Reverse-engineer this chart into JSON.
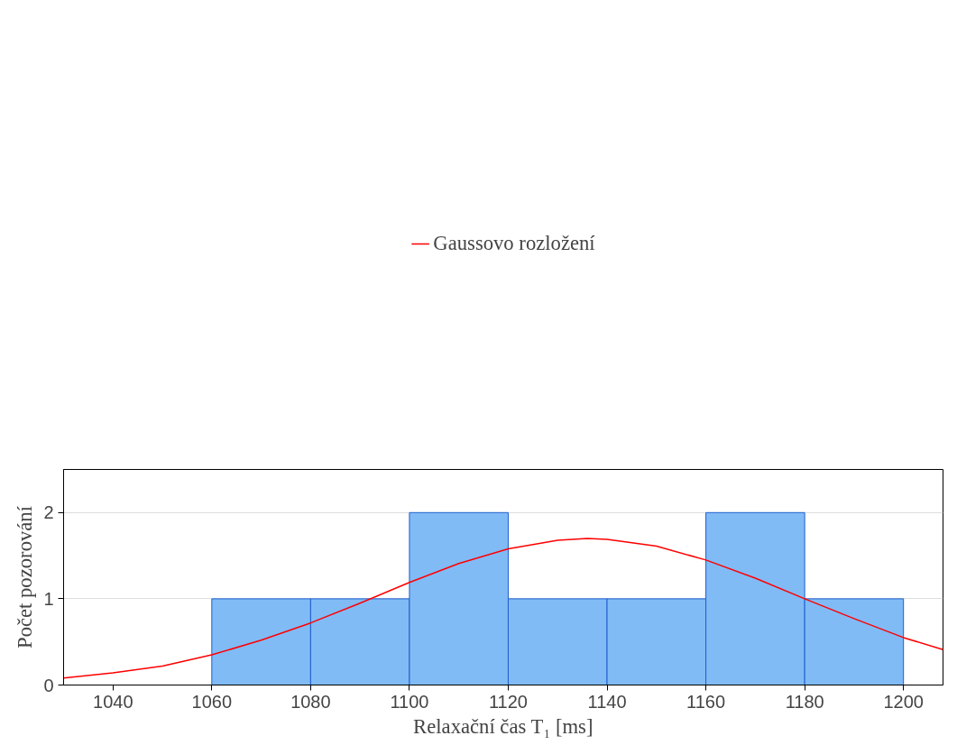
{
  "chart_data": {
    "type": "histogram",
    "xlabel": "Relaxační čas T₁ [ms]",
    "ylabel": "Počet pozorování",
    "bins": [
      1060,
      1080,
      1100,
      1120,
      1140,
      1160,
      1180,
      1200
    ],
    "values": [
      1,
      1,
      2,
      1,
      1,
      2,
      1
    ],
    "color": "#80bbf6",
    "series": [
      {
        "name": "Gaussovo rozložení",
        "type": "line",
        "color": "#ff0000",
        "x": [
          1030,
          1040,
          1050,
          1060,
          1070,
          1080,
          1090,
          1100,
          1110,
          1120,
          1130,
          1136,
          1140,
          1150,
          1160,
          1170,
          1180,
          1190,
          1200,
          1208
        ],
        "values": [
          0.08,
          0.14,
          0.22,
          0.35,
          0.52,
          0.72,
          0.95,
          1.19,
          1.41,
          1.58,
          1.68,
          1.7,
          1.69,
          1.61,
          1.45,
          1.24,
          1.0,
          0.77,
          0.55,
          0.41
        ]
      }
    ],
    "xlim": [
      1030,
      1208
    ],
    "xticks": [
      1040,
      1060,
      1080,
      1100,
      1120,
      1140,
      1160,
      1180,
      1200
    ],
    "ylim": [
      0,
      2.5
    ],
    "yticks": [
      0,
      1,
      2
    ],
    "grid": "y",
    "legend": "top"
  }
}
